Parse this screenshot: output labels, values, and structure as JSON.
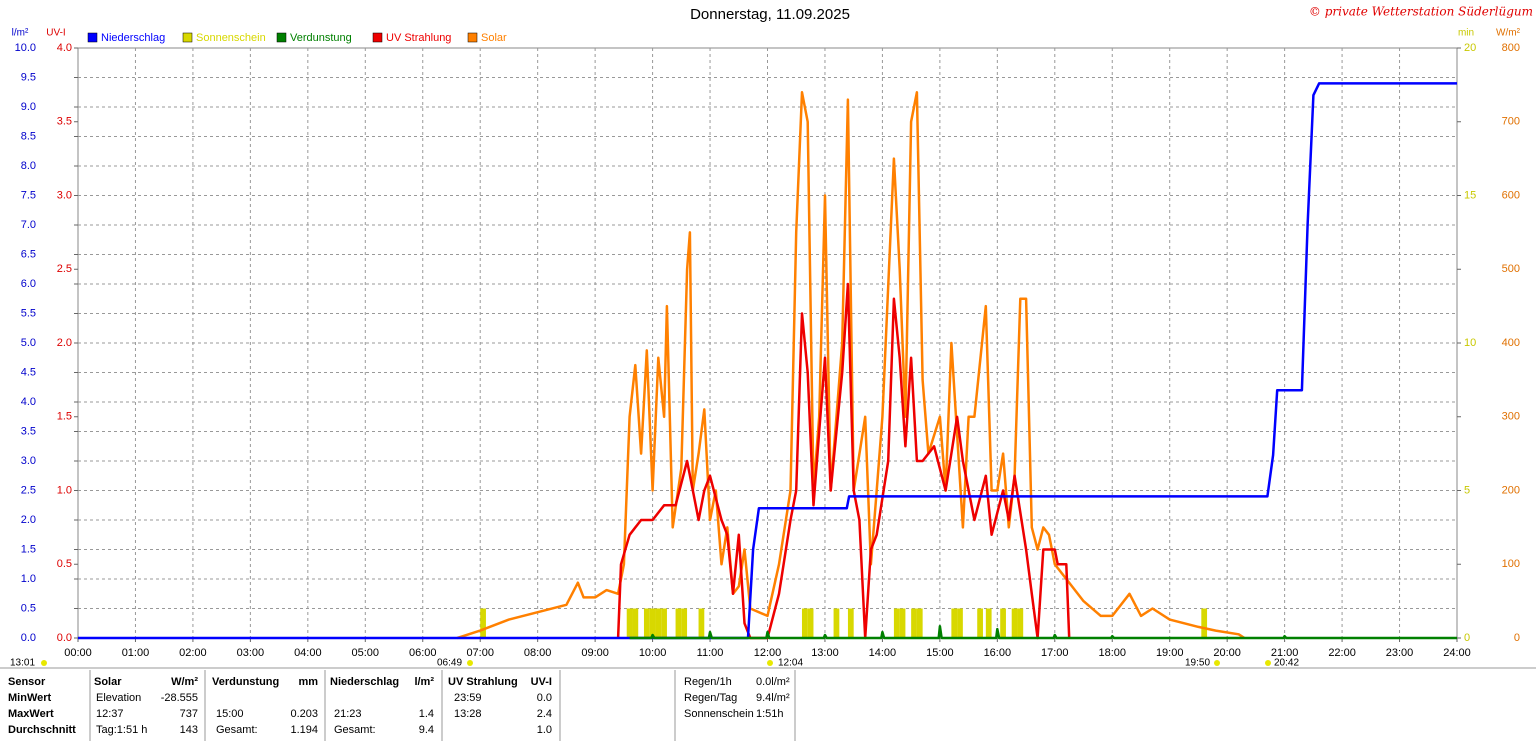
{
  "chart_data": {
    "type": "line",
    "title": "Donnerstag, 11.09.2025",
    "copyright": "© private Wetterstation Süderlügum",
    "xlim": [
      0,
      24
    ],
    "xticks": [
      {
        "value": 0,
        "label": "00:00"
      },
      {
        "value": 1,
        "label": "01:00"
      },
      {
        "value": 2,
        "label": "02:00"
      },
      {
        "value": 3,
        "label": "03:00"
      },
      {
        "value": 4,
        "label": "04:00"
      },
      {
        "value": 5,
        "label": "05:00"
      },
      {
        "value": 6,
        "label": "06:00"
      },
      {
        "value": 7,
        "label": "07:00"
      },
      {
        "value": 8,
        "label": "08:00"
      },
      {
        "value": 9,
        "label": "09:00"
      },
      {
        "value": 10,
        "label": "10:00"
      },
      {
        "value": 11,
        "label": "11:00"
      },
      {
        "value": 12,
        "label": "12:00"
      },
      {
        "value": 13,
        "label": "13:00"
      },
      {
        "value": 14,
        "label": "14:00"
      },
      {
        "value": 15,
        "label": "15:00"
      },
      {
        "value": 16,
        "label": "16:00"
      },
      {
        "value": 17,
        "label": "17:00"
      },
      {
        "value": 18,
        "label": "18:00"
      },
      {
        "value": 19,
        "label": "19:00"
      },
      {
        "value": 20,
        "label": "20:00"
      },
      {
        "value": 21,
        "label": "21:00"
      },
      {
        "value": 22,
        "label": "22:00"
      },
      {
        "value": 23,
        "label": "23:00"
      },
      {
        "value": 24,
        "label": "24:00"
      }
    ],
    "grid": true,
    "axes": [
      {
        "label": "l/m²",
        "color": "#0000cc",
        "lim": [
          0,
          10
        ],
        "ticks": [
          {
            "value": 0,
            "label": "0.0"
          },
          {
            "value": 0.5,
            "label": "0.5"
          },
          {
            "value": 1,
            "label": "1.0"
          },
          {
            "value": 1.5,
            "label": "1.5"
          },
          {
            "value": 2,
            "label": "2.0"
          },
          {
            "value": 2.5,
            "label": "2.5"
          },
          {
            "value": 3,
            "label": "3.0"
          },
          {
            "value": 3.5,
            "label": "3.5"
          },
          {
            "value": 4,
            "label": "4.0"
          },
          {
            "value": 4.5,
            "label": "4.5"
          },
          {
            "value": 5,
            "label": "5.0"
          },
          {
            "value": 5.5,
            "label": "5.5"
          },
          {
            "value": 6,
            "label": "6.0"
          },
          {
            "value": 6.5,
            "label": "6.5"
          },
          {
            "value": 7,
            "label": "7.0"
          },
          {
            "value": 7.5,
            "label": "7.5"
          },
          {
            "value": 8,
            "label": "8.0"
          },
          {
            "value": 8.5,
            "label": "8.5"
          },
          {
            "value": 9,
            "label": "9.0"
          },
          {
            "value": 9.5,
            "label": "9.5"
          },
          {
            "value": 10,
            "label": "10.0"
          }
        ]
      },
      {
        "label": "UV-I",
        "color": "#dd0000",
        "lim": [
          0,
          4
        ],
        "ticks": [
          {
            "value": 0,
            "label": "0.0"
          },
          {
            "value": 0.5,
            "label": "0.5"
          },
          {
            "value": 1,
            "label": "1.0"
          },
          {
            "value": 1.5,
            "label": "1.5"
          },
          {
            "value": 2,
            "label": "2.0"
          },
          {
            "value": 2.5,
            "label": "2.5"
          },
          {
            "value": 3,
            "label": "3.0"
          },
          {
            "value": 3.5,
            "label": "3.5"
          },
          {
            "value": 4,
            "label": "4.0"
          }
        ]
      },
      {
        "label": "min",
        "color": "#c8c800",
        "lim": [
          0,
          20
        ],
        "ticks": [
          0,
          5,
          10,
          15,
          20
        ]
      },
      {
        "label": "W/m²",
        "color": "#e07000",
        "lim": [
          0,
          800
        ],
        "ticks": [
          0,
          100,
          200,
          300,
          400,
          500,
          600,
          700,
          800
        ]
      }
    ],
    "series": [
      {
        "name": "Niederschlag",
        "color": "#0000ff",
        "axis": 0,
        "style": "line",
        "x": [
          0,
          11.66,
          11.75,
          11.85,
          12.0,
          13.38,
          13.42,
          20.7,
          20.8,
          20.87,
          21.3,
          21.4,
          21.5,
          21.6,
          24
        ],
        "values": [
          0,
          0,
          1.5,
          2.2,
          2.2,
          2.2,
          2.4,
          2.4,
          3.1,
          4.2,
          4.2,
          7,
          9.2,
          9.4,
          9.4
        ]
      },
      {
        "name": "Sonnenschein",
        "color": "#d8d800",
        "axis": 2,
        "style": "bar",
        "x": [
          7.05,
          9.6,
          9.7,
          9.9,
          10.0,
          10.1,
          10.2,
          10.45,
          10.55,
          10.85,
          12.65,
          12.75,
          13.2,
          13.45,
          14.25,
          14.35,
          14.55,
          14.65,
          15.25,
          15.35,
          15.7,
          15.85,
          16.1,
          16.3,
          16.4,
          19.6
        ],
        "values": [
          1,
          1,
          1,
          1,
          1,
          1,
          1,
          1,
          1,
          1,
          1,
          1,
          1,
          1,
          1,
          1,
          1,
          1,
          1,
          1,
          1,
          1,
          1,
          1,
          1,
          1
        ]
      },
      {
        "name": "Verdunstung",
        "color": "#008000",
        "axis": 0,
        "style": "line",
        "x": [
          9.6,
          9.98,
          10.0,
          10.03,
          10.98,
          11.0,
          11.03,
          11.98,
          12.0,
          12.03,
          12.98,
          13.0,
          13.03,
          13.98,
          14.0,
          14.03,
          14.98,
          15.0,
          15.03,
          15.98,
          16.0,
          16.03,
          16.98,
          17.0,
          17.03,
          17.98,
          18.0,
          18.03,
          20.98,
          21.0,
          21.03,
          24
        ],
        "values": [
          0,
          0,
          0.05,
          0,
          0,
          0.1,
          0,
          0,
          0.1,
          0,
          0,
          0.05,
          0,
          0,
          0.1,
          0,
          0,
          0.2,
          0,
          0,
          0.15,
          0,
          0,
          0.05,
          0,
          0,
          0.03,
          0,
          0,
          0.03,
          0,
          0
        ]
      },
      {
        "name": "UV Strahlung",
        "color": "#ee0000",
        "axis": 1,
        "style": "line",
        "x": [
          9.4,
          9.45,
          9.6,
          9.8,
          10.0,
          10.2,
          10.4,
          10.6,
          10.8,
          10.9,
          11.0,
          11.2,
          11.3,
          11.4,
          11.5,
          11.6,
          11.7,
          12.0,
          12.2,
          12.4,
          12.5,
          12.6,
          12.7,
          12.8,
          12.9,
          13.0,
          13.1,
          13.3,
          13.4,
          13.5,
          13.6,
          13.7,
          13.8,
          13.9,
          14.1,
          14.2,
          14.3,
          14.4,
          14.5,
          14.6,
          14.7,
          14.9,
          15.1,
          15.3,
          15.4,
          15.6,
          15.8,
          15.9,
          16.1,
          16.2,
          16.3,
          16.5,
          16.6,
          16.7,
          16.8,
          17.0,
          17.05,
          17.2,
          17.25
        ],
        "values": [
          0,
          0.5,
          0.7,
          0.8,
          0.8,
          0.9,
          0.9,
          1.2,
          0.8,
          1.0,
          1.1,
          0.8,
          0.7,
          0.3,
          0.7,
          0.1,
          0,
          0,
          0.3,
          0.8,
          1.0,
          2.2,
          1.8,
          0.9,
          1.4,
          1.9,
          1.0,
          1.8,
          2.4,
          1.0,
          0.8,
          0,
          0.6,
          0.7,
          1.2,
          2.3,
          1.9,
          1.3,
          1.9,
          1.2,
          1.2,
          1.3,
          1.0,
          1.5,
          1.2,
          0.8,
          1.1,
          0.7,
          1.0,
          0.8,
          1.1,
          0.6,
          0.3,
          0,
          0.6,
          0.6,
          0.5,
          0.5,
          0
        ]
      },
      {
        "name": "Solar",
        "color": "#ff8000",
        "axis": 3,
        "style": "line",
        "x": [
          6.6,
          7.0,
          7.5,
          8.0,
          8.5,
          8.7,
          8.8,
          9.0,
          9.2,
          9.4,
          9.5,
          9.6,
          9.7,
          9.8,
          9.9,
          10.0,
          10.1,
          10.2,
          10.25,
          10.35,
          10.5,
          10.6,
          10.65,
          10.7,
          10.8,
          10.9,
          11.0,
          11.1,
          11.2,
          11.3,
          11.4,
          11.5,
          11.6,
          11.7,
          12.0,
          12.2,
          12.4,
          12.5,
          12.6,
          12.7,
          12.8,
          12.9,
          13.0,
          13.1,
          13.3,
          13.4,
          13.5,
          13.7,
          13.8,
          13.9,
          14.0,
          14.2,
          14.3,
          14.4,
          14.5,
          14.6,
          14.7,
          14.8,
          15.0,
          15.1,
          15.2,
          15.4,
          15.5,
          15.6,
          15.8,
          15.9,
          16.0,
          16.1,
          16.2,
          16.3,
          16.4,
          16.5,
          16.6,
          16.7,
          16.8,
          16.9,
          17.0,
          17.2,
          17.5,
          17.8,
          18.0,
          18.3,
          18.5,
          18.7,
          19.0,
          19.5,
          19.8,
          20.2,
          20.3
        ],
        "values": [
          0,
          10,
          25,
          35,
          45,
          75,
          55,
          55,
          65,
          60,
          100,
          300,
          370,
          250,
          390,
          200,
          380,
          300,
          450,
          150,
          230,
          500,
          550,
          200,
          250,
          310,
          160,
          200,
          100,
          150,
          60,
          70,
          120,
          40,
          30,
          100,
          200,
          550,
          740,
          700,
          200,
          300,
          600,
          200,
          400,
          730,
          200,
          300,
          100,
          200,
          300,
          650,
          500,
          300,
          700,
          740,
          350,
          250,
          300,
          200,
          400,
          150,
          300,
          300,
          450,
          200,
          200,
          250,
          150,
          220,
          460,
          460,
          150,
          120,
          150,
          140,
          100,
          80,
          50,
          30,
          30,
          60,
          30,
          40,
          25,
          15,
          10,
          5,
          0
        ]
      }
    ],
    "annotations": [
      "13:01",
      "06:49",
      "12:04",
      "19:50",
      "20:42"
    ],
    "table": {
      "labels": [
        "Sensor",
        "MinWert",
        "MaxWert",
        "Durchschnitt"
      ],
      "columns": [
        {
          "title": "Solar",
          "unit": "W/m²",
          "rows": [
            [
              "Elevation",
              "-28.555"
            ],
            [
              "12:37",
              "737"
            ],
            [
              "Tag:1:51 h",
              "143"
            ]
          ]
        },
        {
          "title": "Verdunstung",
          "unit": "mm",
          "rows": [
            [
              null,
              null
            ],
            [
              "15:00",
              "0.203"
            ],
            [
              "Gesamt:",
              "1.194"
            ]
          ]
        },
        {
          "title": "Niederschlag",
          "unit": "l/m²",
          "rows": [
            [
              null,
              null
            ],
            [
              "21:23",
              "1.4"
            ],
            [
              "Gesamt:",
              "9.4"
            ]
          ]
        },
        {
          "title": "UV Strahlung",
          "unit": "UV-I",
          "rows": [
            [
              "23:59",
              "0.0"
            ],
            [
              "13:28",
              "2.4"
            ],
            [
              null,
              "1.0"
            ]
          ]
        }
      ],
      "summary": [
        [
          "Regen/1h",
          "0.0l/m²"
        ],
        [
          "Regen/Tag",
          "9.4l/m²"
        ],
        [
          "Sonnenschein",
          "1:51h"
        ]
      ]
    }
  }
}
